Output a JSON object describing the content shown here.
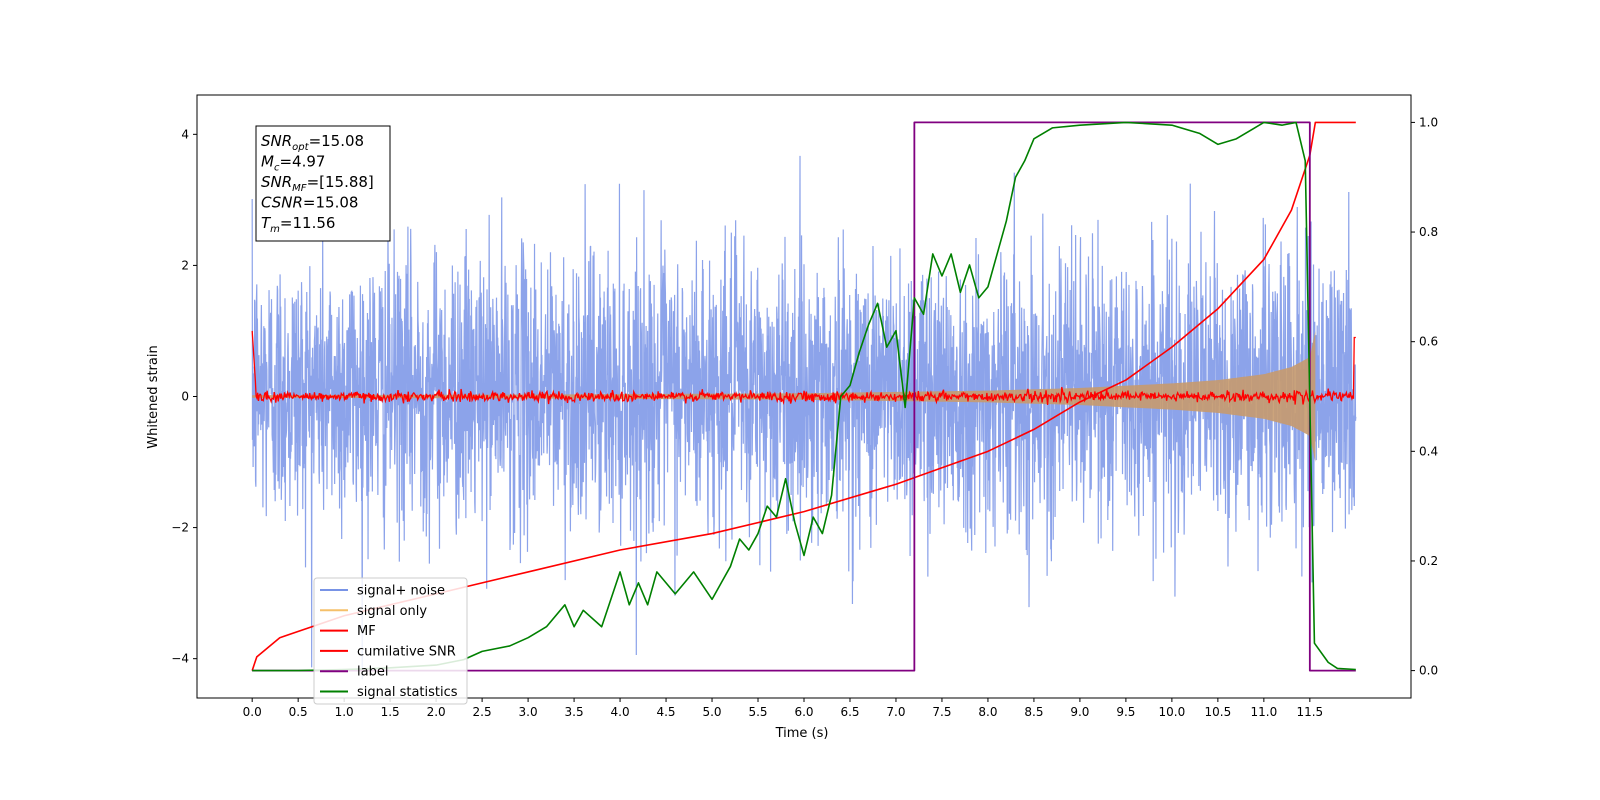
{
  "chart_data": {
    "type": "line",
    "title": "",
    "xlabel": "Time (s)",
    "ylabel": "Whitened strain",
    "x_ticks": [
      "0.0",
      "0.5",
      "1.0",
      "1.5",
      "2.0",
      "2.5",
      "3.0",
      "3.5",
      "4.0",
      "4.5",
      "5.0",
      "5.5",
      "6.0",
      "6.5",
      "7.0",
      "7.5",
      "8.0",
      "8.5",
      "9.0",
      "9.5",
      "10.0",
      "10.5",
      "11.0",
      "11.5"
    ],
    "y_ticks_left": [
      "−4",
      "−2",
      "0",
      "2",
      "4"
    ],
    "y_ticks_right": [
      "0.0",
      "0.2",
      "0.4",
      "0.6",
      "0.8",
      "1.0"
    ],
    "xlim": [
      -0.6,
      12.6
    ],
    "ylim_left": [
      -4.6,
      4.6
    ],
    "ylim_right": [
      -0.05,
      1.05
    ],
    "grid": false,
    "legend_position": "lower-left",
    "annotation": {
      "lines": [
        {
          "name": "SNR",
          "sub": "opt",
          "value": "=15.08"
        },
        {
          "name": "M",
          "sub": "c",
          "value": "=4.97"
        },
        {
          "name": "SNR",
          "sub": "MF",
          "value": "=[15.88]"
        },
        {
          "name": "CSNR",
          "sub": "",
          "value": "=15.08"
        },
        {
          "name": "T",
          "sub": "m",
          "value": "=11.56"
        }
      ]
    },
    "series": [
      {
        "name": "signal+ noise",
        "color": "#7893e6",
        "axis": "left",
        "description": "white noise, std ~1, t 0–12",
        "noise_std": 1.0,
        "x_range": [
          0,
          12
        ]
      },
      {
        "name": "signal only",
        "color": "#f5c06a",
        "axis": "left",
        "description": "chirp envelope growing to ~1 amplitude at merger 11.56",
        "envelope": {
          "x": [
            0,
            3,
            6,
            8,
            9,
            10,
            10.5,
            11,
            11.3,
            11.5,
            11.56
          ],
          "y": [
            0.02,
            0.03,
            0.05,
            0.09,
            0.13,
            0.2,
            0.25,
            0.34,
            0.45,
            0.6,
            1.0
          ]
        },
        "x_range": [
          0,
          11.56
        ]
      },
      {
        "name": "MF",
        "color": "#ff0000",
        "axis": "left",
        "description": "matched filter output near 0 with spikes at edges",
        "x_range": [
          0,
          12
        ]
      },
      {
        "name": "cumilative SNR",
        "color": "#ff0000",
        "axis": "right",
        "x": [
          0,
          0.05,
          0.3,
          1,
          2,
          3,
          4,
          5,
          6,
          7,
          7.5,
          8,
          8.5,
          9,
          9.5,
          10,
          10.5,
          11,
          11.3,
          11.5,
          11.56,
          12
        ],
        "y": [
          0.0,
          0.025,
          0.06,
          0.1,
          0.14,
          0.18,
          0.22,
          0.25,
          0.29,
          0.34,
          0.37,
          0.4,
          0.44,
          0.49,
          0.53,
          0.59,
          0.66,
          0.75,
          0.84,
          0.94,
          1.0,
          1.0
        ]
      },
      {
        "name": "label",
        "color": "#800080",
        "axis": "right",
        "x": [
          0,
          7.2,
          7.2,
          11.5,
          11.5,
          12
        ],
        "y": [
          0,
          0,
          1,
          1,
          0,
          0
        ]
      },
      {
        "name": "signal statistics",
        "color": "#008000",
        "axis": "right",
        "x": [
          0,
          0.5,
          1.0,
          1.5,
          2.0,
          2.3,
          2.5,
          2.8,
          3.0,
          3.2,
          3.4,
          3.5,
          3.6,
          3.8,
          4.0,
          4.1,
          4.2,
          4.3,
          4.4,
          4.5,
          4.6,
          4.8,
          5.0,
          5.1,
          5.2,
          5.3,
          5.4,
          5.5,
          5.6,
          5.7,
          5.8,
          5.9,
          6.0,
          6.1,
          6.2,
          6.3,
          6.4,
          6.5,
          6.6,
          6.7,
          6.8,
          6.9,
          7.0,
          7.1,
          7.2,
          7.3,
          7.4,
          7.5,
          7.6,
          7.7,
          7.8,
          7.9,
          8.0,
          8.1,
          8.2,
          8.3,
          8.4,
          8.5,
          8.7,
          9.0,
          9.5,
          10.0,
          10.3,
          10.5,
          10.7,
          10.9,
          11.0,
          11.2,
          11.35,
          11.45,
          11.55,
          11.7,
          11.8,
          12.0
        ],
        "y": [
          0.0,
          0.0,
          0.002,
          0.005,
          0.01,
          0.02,
          0.035,
          0.045,
          0.06,
          0.08,
          0.12,
          0.08,
          0.11,
          0.08,
          0.18,
          0.12,
          0.16,
          0.12,
          0.18,
          0.16,
          0.14,
          0.18,
          0.13,
          0.16,
          0.19,
          0.24,
          0.22,
          0.25,
          0.3,
          0.28,
          0.35,
          0.27,
          0.21,
          0.28,
          0.25,
          0.32,
          0.5,
          0.52,
          0.58,
          0.63,
          0.67,
          0.59,
          0.62,
          0.48,
          0.68,
          0.65,
          0.76,
          0.72,
          0.76,
          0.69,
          0.74,
          0.68,
          0.7,
          0.76,
          0.82,
          0.9,
          0.93,
          0.97,
          0.99,
          0.995,
          1.0,
          0.995,
          0.98,
          0.96,
          0.97,
          0.99,
          1.0,
          0.995,
          1.0,
          0.93,
          0.05,
          0.015,
          0.004,
          0.002
        ]
      }
    ]
  }
}
